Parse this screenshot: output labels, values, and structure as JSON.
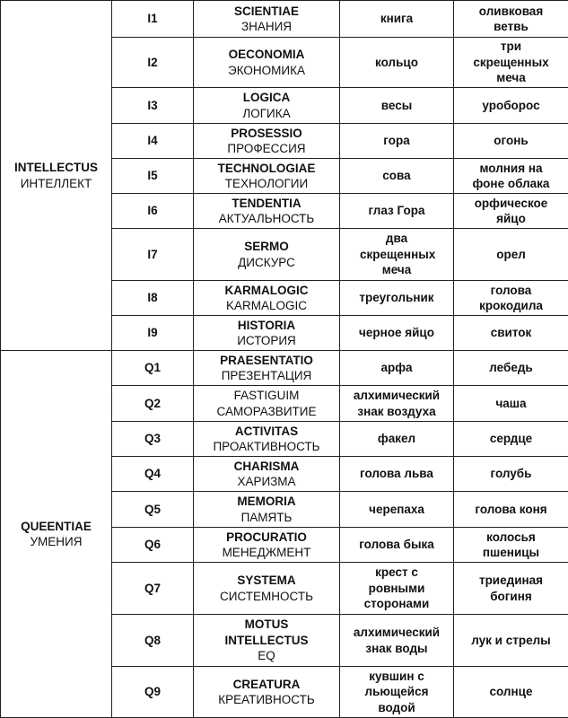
{
  "groups": [
    {
      "name_latin": "INTELLECTUS",
      "name_ru": "ИНТЕЛЛЕКТ",
      "rows": [
        {
          "code": "I1",
          "latin": "SCIENTIAE",
          "ru": "ЗНАНИЯ",
          "symbol1": "книга",
          "symbol2": "оливковая ветвь"
        },
        {
          "code": "I2",
          "latin": "OECONOMIA",
          "ru": "ЭКОНОМИКА",
          "symbol1": "кольцо",
          "symbol2": "три скрещенных меча"
        },
        {
          "code": "I3",
          "latin": "LOGICA",
          "ru": "ЛОГИКА",
          "symbol1": "весы",
          "symbol2": "уроборос"
        },
        {
          "code": "I4",
          "latin": "PROSESSIO",
          "ru": "ПРОФЕССИЯ",
          "symbol1": "гора",
          "symbol2": "огонь"
        },
        {
          "code": "I5",
          "latin": "TECHNOLOGIAE",
          "ru": "ТЕХНОЛОГИИ",
          "symbol1": "сова",
          "symbol2": "молния на фоне облака"
        },
        {
          "code": "I6",
          "latin": "TENDENTIA",
          "ru": "АКТУАЛЬНОСТЬ",
          "symbol1": "глаз Гора",
          "symbol2": "орфическое яйцо"
        },
        {
          "code": "I7",
          "latin": "SERMO",
          "ru": "ДИСКУРС",
          "symbol1": "два скрещенных меча",
          "symbol2": "орел"
        },
        {
          "code": "I8",
          "latin": "KARMALOGIC",
          "ru": "KARMALOGIC",
          "symbol1": "треугольник",
          "symbol2": "голова крокодила"
        },
        {
          "code": "I9",
          "latin": "HISTORIA",
          "ru": "ИСТОРИЯ",
          "symbol1": "черное яйцо",
          "symbol2": "свиток"
        }
      ]
    },
    {
      "name_latin": "QUEENTIAE",
      "name_ru": "УМЕНИЯ",
      "rows": [
        {
          "code": "Q1",
          "latin": "PRAESENTATIO",
          "ru": "ПРЕЗЕНТАЦИЯ",
          "symbol1": "арфа",
          "symbol2": "лебедь"
        },
        {
          "code": "Q2",
          "latin": "FASTIGUIM",
          "ru": "САМОРАЗВИТИЕ",
          "symbol1": "алхимический знак воздуха",
          "symbol2": "чаша",
          "latin_bold": false
        },
        {
          "code": "Q3",
          "latin": "ACTIVITAS",
          "ru": "ПРОАКТИВНОСТЬ",
          "symbol1": "факел",
          "symbol2": "сердце"
        },
        {
          "code": "Q4",
          "latin": "CHARISMA",
          "ru": "ХАРИЗМА",
          "symbol1": "голова льва",
          "symbol2": "голубь"
        },
        {
          "code": "Q5",
          "latin": "MEMORIA",
          "ru": "ПАМЯТЬ",
          "symbol1": "черепаха",
          "symbol2": "голова коня"
        },
        {
          "code": "Q6",
          "latin": "PROCURATIO",
          "ru": "МЕНЕДЖМЕНТ",
          "symbol1": "голова быка",
          "symbol2": "колосья пшеницы"
        },
        {
          "code": "Q7",
          "latin": "SYSTEMA",
          "ru": "СИСТЕМНОСТЬ",
          "symbol1": "крест с ровными сторонами",
          "symbol2": "триединая богиня"
        },
        {
          "code": "Q8",
          "latin": "MOTUS INTELLECTUS",
          "ru": "EQ",
          "symbol1": "алхимический знак воды",
          "symbol2": "лук и стрелы"
        },
        {
          "code": "Q9",
          "latin": "CREATURA",
          "ru": "КРЕАТИВНОСТЬ",
          "symbol1": "кувшин с льющейся водой",
          "symbol2": "солнце"
        }
      ]
    }
  ]
}
